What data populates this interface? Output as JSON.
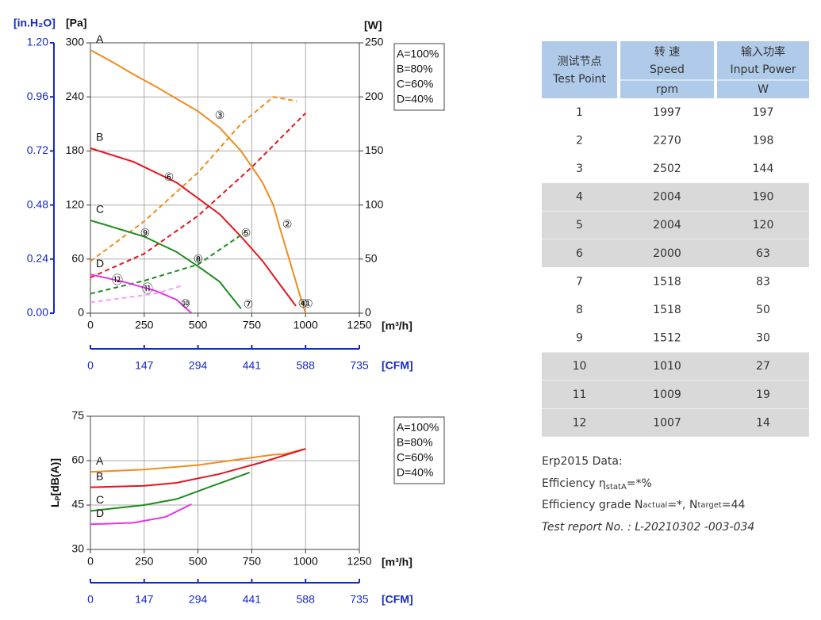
{
  "chart_data": [
    {
      "type": "line",
      "x_label": "[m³/h]",
      "xlim": [
        0,
        1250
      ],
      "xticks": [
        0,
        250,
        500,
        750,
        1000,
        1250
      ],
      "x2_label": "[CFM]",
      "x2lim": [
        0,
        735
      ],
      "x2ticks": [
        0,
        147,
        294,
        441,
        588,
        735
      ],
      "y_label": "[Pa]",
      "ylim": [
        0,
        300
      ],
      "yticks": [
        0,
        60,
        120,
        180,
        240,
        300
      ],
      "y2_label": "[W]",
      "y2lim": [
        0,
        250
      ],
      "y2ticks": [
        0,
        50,
        100,
        150,
        200,
        250
      ],
      "y3_label": "[in.H₂O]",
      "y3lim": [
        0,
        1.2
      ],
      "y3ticks": [
        {
          "value": 0,
          "label": "0.00"
        },
        0.24,
        0.48,
        0.72,
        0.96,
        {
          "value": 1.2,
          "label": "1.20"
        }
      ],
      "grid": true,
      "legend": "right",
      "series": [
        {
          "name": "A=100%",
          "label": "A",
          "color": "#f08c1e",
          "x": [
            0,
            100,
            200,
            300,
            400,
            500,
            600,
            700,
            800,
            850,
            880,
            930,
            980,
            1000
          ],
          "values": [
            292,
            279,
            265,
            252,
            238,
            224,
            206,
            180,
            145,
            120,
            95,
            55,
            15,
            0
          ]
        },
        {
          "color": "#f08c1e",
          "axis": "y2",
          "line_style": "dashed",
          "x": [
            0,
            250,
            500,
            700,
            850,
            960
          ],
          "values": [
            48,
            85,
            130,
            175,
            200,
            196
          ]
        },
        {
          "name": "B=80%",
          "label": "B",
          "color": "#e6141e",
          "x": [
            0,
            200,
            400,
            600,
            700,
            800,
            880,
            955
          ],
          "values": [
            183,
            168,
            145,
            110,
            85,
            58,
            32,
            8
          ]
        },
        {
          "color": "#e6141e",
          "axis": "y2",
          "line_style": "dashed",
          "x": [
            0,
            250,
            500,
            750,
            1000
          ],
          "values": [
            33,
            55,
            90,
            135,
            185
          ]
        },
        {
          "name": "C=60%",
          "label": "C",
          "color": "#1e8c1e",
          "x": [
            0,
            250,
            400,
            500,
            600,
            700
          ],
          "values": [
            103,
            85,
            68,
            52,
            35,
            5
          ]
        },
        {
          "color": "#1e8c1e",
          "axis": "y2",
          "line_style": "dashed",
          "x": [
            0,
            250,
            500,
            720
          ],
          "values": [
            18,
            30,
            45,
            75
          ]
        },
        {
          "name": "D=40%",
          "label": "D",
          "color": "#e632e6",
          "x": [
            0,
            150,
            300,
            400,
            470
          ],
          "values": [
            43,
            35,
            25,
            15,
            0
          ]
        },
        {
          "color": "#f5a0f5",
          "axis": "y2",
          "line_style": "dashed",
          "x": [
            0,
            150,
            300,
            420
          ],
          "values": [
            10,
            14,
            18,
            25
          ]
        }
      ],
      "annotations": [
        {
          "text": "①",
          "x": 1012,
          "y": 10
        },
        {
          "text": "②",
          "x": 915,
          "y": 98
        },
        {
          "text": "③",
          "x": 601,
          "y": 219
        },
        {
          "text": "④",
          "x": 988,
          "y": 10
        },
        {
          "text": "⑤",
          "x": 723,
          "y": 88
        },
        {
          "text": "⑥",
          "x": 365,
          "y": 150
        },
        {
          "text": "⑦",
          "x": 734,
          "y": 9
        },
        {
          "text": "⑧",
          "x": 501,
          "y": 59
        },
        {
          "text": "⑨",
          "x": 254,
          "y": 88
        },
        {
          "text": "⑩",
          "x": 442,
          "y": 10
        },
        {
          "text": "⑪",
          "x": 265,
          "y": 26
        },
        {
          "text": "⑫",
          "x": 125,
          "y": 36
        }
      ]
    },
    {
      "type": "line",
      "x_label": "[m³/h]",
      "xlim": [
        0,
        1250
      ],
      "xticks": [
        0,
        250,
        500,
        750,
        1000,
        1250
      ],
      "x2_label": "[CFM]",
      "x2lim": [
        0,
        735
      ],
      "x2ticks": [
        0,
        147,
        294,
        441,
        588,
        735
      ],
      "y_label": {
        "main": "L",
        "sub": "P",
        "rest": "[dB(A)]"
      },
      "ylim": [
        30,
        75
      ],
      "yticks": [
        30,
        45,
        60,
        75
      ],
      "grid": true,
      "legend": "right",
      "series": [
        {
          "name": "A=100%",
          "label": "A",
          "color": "#f08c1e",
          "x": [
            0,
            250,
            500,
            750,
            850,
            900,
            1000
          ],
          "values": [
            56.2,
            57,
            58.5,
            61,
            62,
            62.2,
            64
          ]
        },
        {
          "name": "B=80%",
          "label": "B",
          "color": "#e6141e",
          "x": [
            0,
            250,
            400,
            600,
            800,
            1000
          ],
          "values": [
            51,
            51.5,
            52.5,
            55.5,
            59.5,
            64
          ]
        },
        {
          "name": "C=60%",
          "label": "C",
          "color": "#1e8c1e",
          "x": [
            0,
            250,
            400,
            550,
            740
          ],
          "values": [
            43,
            45,
            47,
            51,
            56
          ]
        },
        {
          "name": "D=40%",
          "label": "D",
          "color": "#e632e6",
          "x": [
            0,
            200,
            350,
            470
          ],
          "values": [
            38.5,
            39,
            41,
            45.3
          ]
        }
      ]
    }
  ],
  "table": {
    "header": [
      {
        "cn": "测试节点",
        "en": "Test Point"
      },
      {
        "cn": "转 速",
        "en": "Speed",
        "unit": "rpm"
      },
      {
        "cn": "输入功率",
        "en": "Input Power",
        "unit": "W"
      }
    ],
    "rows": [
      [
        1,
        1997,
        197
      ],
      [
        2,
        2270,
        198
      ],
      [
        3,
        2502,
        144
      ],
      [
        4,
        2004,
        190
      ],
      [
        5,
        2004,
        120
      ],
      [
        6,
        2000,
        63
      ],
      [
        7,
        1518,
        83
      ],
      [
        8,
        1518,
        50
      ],
      [
        9,
        1512,
        30
      ],
      [
        10,
        1010,
        27
      ],
      [
        11,
        1009,
        19
      ],
      [
        12,
        1007,
        14
      ]
    ]
  },
  "erp": {
    "title": "Erp2015  Data:",
    "efficiency": {
      "label": "Efficiency  η",
      "sub": "statA",
      "value": "=*%"
    },
    "grade": {
      "label": "Efficiency grade  N",
      "sub1": "actual",
      "mid": "=*, N",
      "sub2": "target",
      "end": "=44"
    },
    "report": "Test report No. : L-20210302 -003-034"
  }
}
